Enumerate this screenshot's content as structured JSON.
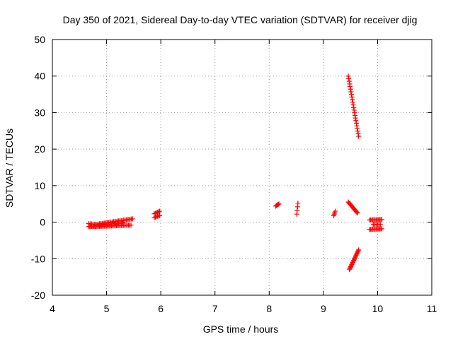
{
  "chart_data": {
    "type": "scatter",
    "title": "Day 350 of 2021, Sidereal Day-to-day VTEC variation (SDTVAR) for receiver djig",
    "xlabel": "GPS time / hours",
    "ylabel": "SDTVAR / TECUs",
    "xlim": [
      4,
      11
    ],
    "ylim": [
      -20,
      50
    ],
    "xticks": [
      "4",
      "5",
      "6",
      "7",
      "8",
      "9",
      "10",
      "11"
    ],
    "yticks": [
      "-20",
      "-10",
      "0",
      "10",
      "20",
      "30",
      "40",
      "50"
    ],
    "grid": true,
    "marker": "plus",
    "color": "#ff0000",
    "segments": [
      {
        "x0": 4.67,
        "x1": 4.8,
        "y0": -1.2,
        "y1": -1.2,
        "n": 8
      },
      {
        "x0": 4.67,
        "x1": 4.8,
        "y0": -0.4,
        "y1": -0.6,
        "n": 6
      },
      {
        "x0": 4.8,
        "x1": 5.45,
        "y0": -1.2,
        "y1": -0.8,
        "n": 30
      },
      {
        "x0": 4.8,
        "x1": 5.48,
        "y0": -0.6,
        "y1": 0.9,
        "n": 30
      },
      {
        "x0": 4.85,
        "x1": 5.3,
        "y0": -0.9,
        "y1": -0.2,
        "n": 18
      },
      {
        "x0": 5.88,
        "x1": 5.98,
        "y0": 1.3,
        "y1": 1.8,
        "n": 6
      },
      {
        "x0": 5.88,
        "x1": 5.98,
        "y0": 2.3,
        "y1": 3.0,
        "n": 6
      },
      {
        "x0": 8.12,
        "x1": 8.18,
        "y0": 4.4,
        "y1": 5.0,
        "n": 5
      },
      {
        "x0": 8.51,
        "x1": 8.53,
        "y0": 2.2,
        "y1": 5.2,
        "n": 4
      },
      {
        "x0": 9.19,
        "x1": 9.22,
        "y0": 1.8,
        "y1": 3.0,
        "n": 4
      },
      {
        "x0": 9.46,
        "x1": 9.65,
        "y0": 40.0,
        "y1": 23.5,
        "n": 24
      },
      {
        "x0": 9.46,
        "x1": 9.63,
        "y0": 5.5,
        "y1": 2.5,
        "n": 14
      },
      {
        "x0": 9.48,
        "x1": 9.65,
        "y0": -13.0,
        "y1": -7.6,
        "n": 20
      },
      {
        "x0": 9.85,
        "x1": 10.08,
        "y0": 0.6,
        "y1": 0.7,
        "n": 12
      },
      {
        "x0": 9.85,
        "x1": 10.08,
        "y0": -2.0,
        "y1": -1.8,
        "n": 12
      },
      {
        "x0": 9.92,
        "x1": 10.05,
        "y0": -0.6,
        "y1": -0.6,
        "n": 6
      }
    ]
  }
}
